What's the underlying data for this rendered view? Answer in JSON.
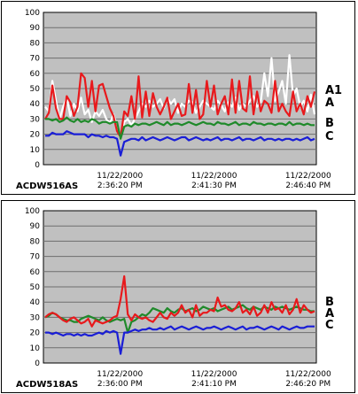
{
  "chart_data": [
    {
      "type": "line",
      "title": "ACDW516AS",
      "xlabel": "",
      "ylabel": "",
      "ylim": [
        0,
        100
      ],
      "yticks": [
        0,
        10,
        20,
        30,
        40,
        50,
        60,
        70,
        80,
        90,
        100
      ],
      "xtick_labels": [
        {
          "date": "11/22/2000",
          "time": "2:36:20 PM",
          "pos": 0.28
        },
        {
          "date": "11/22/2000",
          "time": "2:41:30 PM",
          "pos": 0.625
        },
        {
          "date": "11/22/2000",
          "time": "2:46:40 PM",
          "pos": 0.97
        }
      ],
      "grid": true,
      "legend": "right",
      "series": [
        {
          "name": "A1",
          "color": "#ffffff",
          "values": [
            38,
            35,
            55,
            42,
            30,
            38,
            44,
            32,
            40,
            35,
            44,
            33,
            36,
            28,
            35,
            32,
            36,
            30,
            27,
            33,
            25,
            17,
            28,
            30,
            26,
            30,
            35,
            40,
            38,
            42,
            38,
            40,
            43,
            37,
            44,
            40,
            43,
            34,
            40,
            38,
            42,
            41,
            34,
            38,
            42,
            40,
            38,
            36,
            42,
            39,
            35,
            41,
            38,
            44,
            36,
            40,
            38,
            42,
            45,
            38,
            41,
            60,
            45,
            70,
            42,
            48,
            55,
            40,
            72,
            45,
            50,
            38,
            42,
            35,
            46,
            33
          ]
        },
        {
          "name": "A",
          "color": "#e8191c",
          "values": [
            30,
            34,
            52,
            37,
            30,
            30,
            45,
            41,
            32,
            38,
            60,
            57,
            38,
            55,
            35,
            52,
            53,
            45,
            37,
            32,
            22,
            18,
            35,
            32,
            45,
            30,
            58,
            31,
            48,
            32,
            47,
            38,
            33,
            38,
            44,
            30,
            35,
            40,
            32,
            33,
            53,
            34,
            49,
            30,
            33,
            55,
            38,
            52,
            33,
            40,
            45,
            33,
            56,
            34,
            55,
            37,
            35,
            58,
            33,
            48,
            35,
            42,
            40,
            34,
            55,
            35,
            40,
            35,
            32,
            48,
            35,
            40,
            33,
            45,
            38,
            48
          ]
        },
        {
          "name": "B",
          "color": "#1f8a2a",
          "values": [
            30,
            30,
            29,
            30,
            28,
            29,
            31,
            29,
            28,
            30,
            28,
            29,
            28,
            30,
            29,
            27,
            28,
            28,
            27,
            28,
            28,
            17,
            25,
            26,
            25,
            27,
            26,
            27,
            27,
            26,
            27,
            28,
            27,
            26,
            28,
            26,
            27,
            27,
            26,
            27,
            28,
            27,
            26,
            27,
            28,
            27,
            27,
            26,
            28,
            27,
            27,
            26,
            27,
            28,
            26,
            27,
            27,
            26,
            28,
            27,
            27,
            26,
            27,
            27,
            26,
            27,
            27,
            26,
            28,
            26,
            27,
            27,
            26,
            27,
            26,
            26
          ]
        },
        {
          "name": "C",
          "color": "#1a1ed6",
          "values": [
            19,
            19,
            21,
            20,
            20,
            20,
            22,
            21,
            20,
            20,
            20,
            20,
            18,
            20,
            19,
            19,
            18,
            19,
            18,
            18,
            17,
            6,
            15,
            16,
            17,
            17,
            16,
            18,
            16,
            17,
            18,
            17,
            16,
            17,
            18,
            17,
            16,
            17,
            18,
            18,
            16,
            17,
            18,
            17,
            16,
            17,
            16,
            17,
            18,
            16,
            17,
            17,
            16,
            17,
            18,
            16,
            17,
            17,
            16,
            17,
            18,
            16,
            17,
            17,
            16,
            17,
            16,
            17,
            17,
            16,
            17,
            16,
            17,
            18,
            16,
            17
          ]
        }
      ]
    },
    {
      "type": "line",
      "title": "ACDW518AS",
      "xlabel": "",
      "ylabel": "",
      "ylim": [
        0,
        100
      ],
      "yticks": [
        0,
        10,
        20,
        30,
        40,
        50,
        60,
        70,
        80,
        90,
        100
      ],
      "xtick_labels": [
        {
          "date": "11/22/2000",
          "time": "2:36:00 PM",
          "pos": 0.28
        },
        {
          "date": "11/22/2000",
          "time": "2:41:10 PM",
          "pos": 0.625
        },
        {
          "date": "11/22/2000",
          "time": "2:46:20 PM",
          "pos": 0.97
        }
      ],
      "grid": true,
      "legend": "right",
      "series": [
        {
          "name": "B",
          "color": "#1f8a2a",
          "values": [
            30,
            31,
            33,
            32,
            30,
            29,
            28,
            28,
            27,
            27,
            29,
            30,
            31,
            30,
            29,
            28,
            30,
            28,
            27,
            28,
            29,
            28,
            29,
            20,
            27,
            28,
            30,
            32,
            31,
            33,
            36,
            35,
            34,
            33,
            36,
            34,
            33,
            35,
            36,
            34,
            35,
            36,
            34,
            35,
            37,
            36,
            35,
            36,
            34,
            35,
            36,
            37,
            35,
            36,
            37,
            38,
            36,
            35,
            37,
            36,
            35,
            37,
            36,
            35,
            37,
            36,
            37,
            36,
            35,
            36,
            37,
            36,
            35,
            35,
            34,
            34
          ]
        },
        {
          "name": "A",
          "color": "#e8191c",
          "values": [
            30,
            32,
            33,
            32,
            30,
            28,
            27,
            29,
            30,
            28,
            26,
            27,
            29,
            24,
            28,
            27,
            26,
            27,
            28,
            30,
            31,
            42,
            57,
            32,
            28,
            32,
            30,
            29,
            30,
            28,
            27,
            30,
            33,
            30,
            29,
            33,
            31,
            33,
            38,
            33,
            35,
            30,
            38,
            31,
            33,
            33,
            35,
            34,
            43,
            37,
            38,
            35,
            34,
            36,
            40,
            33,
            35,
            32,
            37,
            31,
            33,
            38,
            33,
            40,
            35,
            36,
            33,
            38,
            32,
            35,
            42,
            33,
            38,
            35,
            33,
            34
          ]
        },
        {
          "name": "C",
          "color": "#1a1ed6",
          "values": [
            20,
            20,
            19,
            20,
            19,
            18,
            19,
            19,
            18,
            19,
            18,
            19,
            18,
            18,
            19,
            20,
            19,
            21,
            20,
            21,
            20,
            6,
            20,
            20,
            21,
            22,
            21,
            22,
            22,
            23,
            22,
            22,
            23,
            22,
            23,
            24,
            22,
            23,
            24,
            23,
            22,
            23,
            24,
            23,
            22,
            23,
            23,
            24,
            23,
            22,
            23,
            24,
            23,
            22,
            23,
            24,
            22,
            23,
            23,
            24,
            23,
            22,
            23,
            24,
            23,
            22,
            24,
            23,
            22,
            23,
            24,
            23,
            23,
            24,
            24,
            24
          ]
        }
      ]
    }
  ]
}
